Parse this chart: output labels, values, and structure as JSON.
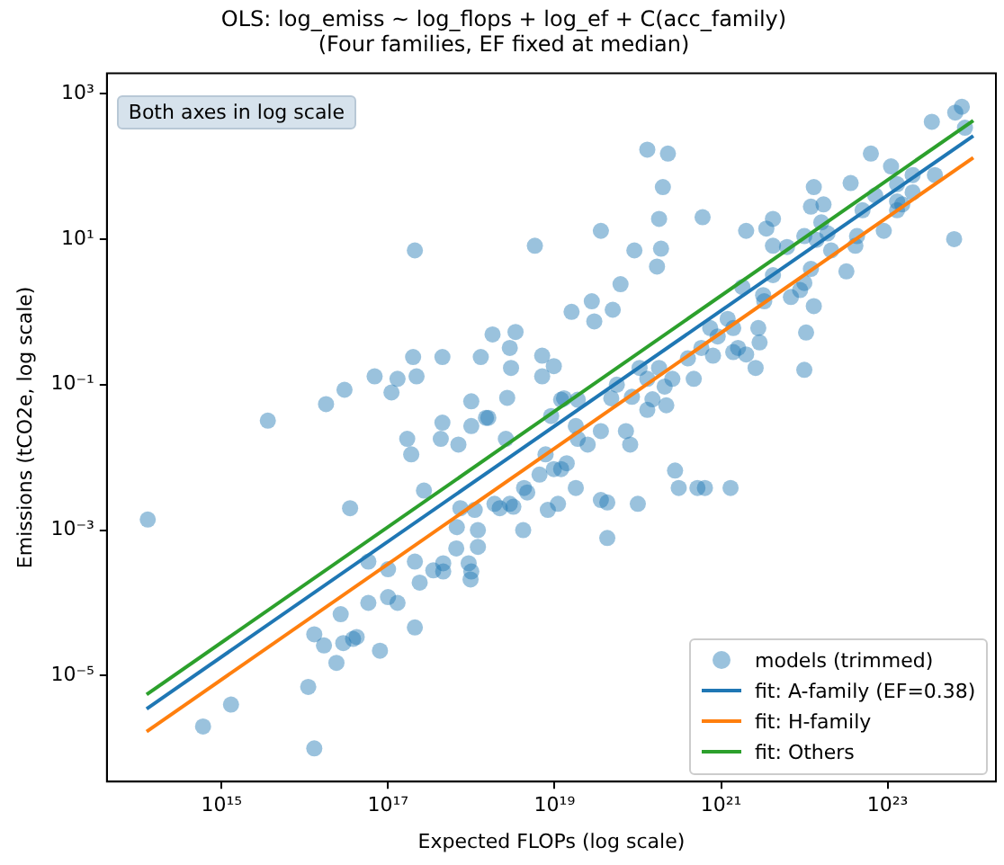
{
  "chart_data": {
    "type": "scatter",
    "title": "OLS: log_emiss ~ log_flops + log_ef + C(acc_family)",
    "subtitle": "(Four families, EF fixed at median)",
    "xlabel": "Expected FLOPs (log scale)",
    "ylabel": "Emissions (tCO2e, log scale)",
    "annotations": [
      "Both axes in log scale"
    ],
    "log": "xy",
    "grid": false,
    "legend": "bottom right",
    "xlim": [
      42000000000000.0,
      2e+24
    ],
    "ylim": [
      3.5e-07,
      1900
    ],
    "xticks": [
      {
        "value": 1000000000000000.0,
        "label": "10¹⁵"
      },
      {
        "value": 1e+17,
        "label": "10¹⁷"
      },
      {
        "value": 1e+19,
        "label": "10¹⁹"
      },
      {
        "value": 1e+21,
        "label": "10²¹"
      },
      {
        "value": 1e+23,
        "label": "10²³"
      }
    ],
    "yticks": [
      {
        "value": 1e-05,
        "label": "10⁻⁵"
      },
      {
        "value": 0.001,
        "label": "10⁻³"
      },
      {
        "value": 0.1,
        "label": "10⁻¹"
      },
      {
        "value": 10,
        "label": "10¹"
      },
      {
        "value": 1000,
        "label": "10³"
      }
    ],
    "series": [
      {
        "name": "models (trimmed)",
        "marker": "circle",
        "color": "#1f77b4",
        "x": [
          130000000000000.0,
          3600000000000000.0,
          600000000000000.0,
          1300000000000000.0,
          1.1e+16,
          1.3e+16,
          1.3e+16,
          1.7e+16,
          2.4e+16,
          2.7e+16,
          2.9e+16,
          3.8e+16,
          4.2e+16,
          3.5e+16,
          5.8e+16,
          5.8e+16,
          8e+16,
          1e+17,
          1e+17,
          1.3e+17,
          2.1e+17,
          2.1e+17,
          2.4e+17,
          2.7e+17,
          1.7e+17,
          1.9e+17,
          3.5e+17,
          4.6e+17,
          4.6e+17,
          4.3e+17,
          4.5e+17,
          7e+17,
          6.6e+17,
          6.7e+17,
          7.4e+17,
          9.3e+17,
          1e+18,
          9.8e+17,
          1.1e+18,
          1.2e+18,
          1.2e+18,
          1e+18,
          1.5e+18,
          1.6e+18,
          1.9e+18,
          2.2e+18,
          2.9e+18,
          3.2e+18,
          2.6e+18,
          4.2e+18,
          4.3e+18,
          4.7e+18,
          2.1e+17,
          1.8e+16,
          3e+16,
          6.9e+16,
          1.3e+17,
          1.1e+17,
          2.2e+17,
          2e+17,
          4.5e+17,
          1.3e+18,
          1.8e+18,
          3.4e+18,
          2.9e+18,
          3e+18,
          2.7e+18,
          1e+18,
          5.8e+18,
          1.3e+20,
          2.3e+20,
          2e+20,
          3.6e+19,
          9.1e+19,
          1.8e+20,
          1.9e+20,
          1.7e+20,
          6e+20,
          6.2e+19,
          2.8e+19,
          1.6e+19,
          3e+19,
          5e+19,
          7.1e+18,
          9.8e+18,
          7.1e+18,
          1.2e+19,
          1.3e+19,
          9.1e+18,
          1.9e+19,
          1.8e+19,
          2.5e+19,
          3.6e+19,
          4.8e+19,
          7.2e+19,
          5.6e+19,
          8.5e+19,
          1.3e+20,
          1.5e+20,
          1.05e+20,
          1.8e+20,
          1.3e+20,
          2.6e+20,
          2.1e+20,
          2.2e+20,
          4.7e+20,
          4e+20,
          5.8e+20,
          8e+20,
          9.1e+20,
          1.2e+21,
          1.4e+21,
          7.4e+20,
          1.6e+21,
          1.4e+21,
          2e+21,
          2.6e+21,
          2.9e+21,
          2.8e+21,
          1.8e+21,
          3.2e+21,
          3.3e+21,
          4.2e+21,
          2e+21,
          3.5e+21,
          4.2e+21,
          4.2e+21,
          6.2e+21,
          6.9e+21,
          8.9e+21,
          1e+22,
          1.05e+22,
          1e+22,
          1.3e+22,
          1.2e+22,
          1e+22,
          1.3e+22,
          1.2e+22,
          1.7e+22,
          1.6e+22,
          1.4e+22,
          1.9e+22,
          2.1e+22,
          3.2e+22,
          4.1e+22,
          4.3e+22,
          3.6e+22,
          5e+22,
          6.3e+22,
          9e+22,
          1.1e+23,
          1.3e+23,
          1.3e+23,
          2e+23,
          2e+23,
          3.4e+23,
          3.7e+23,
          6.5e+23,
          7.8e+23,
          8.5e+23,
          6.3e+23,
          1.3e+23,
          1.5e+23,
          7.1e+22,
          2.8e+20,
          3.1e+20,
          5.2e+20,
          6.4e+20,
          1.3e+21,
          1e+20,
          3.6e+19,
          4.3e+19,
          4.3e+19,
          1.8e+19,
          1.1e+19,
          8.3e+18,
          7.8e+18,
          6.6e+18,
          1.2e+19,
          1.4e+19,
          9.8e+18,
          1.9e+19,
          8.1e+19
        ],
        "values": [
          0.0014,
          0.032,
          2e-06,
          4e-06,
          7e-06,
          1e-06,
          3.7e-05,
          2.6e-05,
          1.5e-05,
          7e-05,
          2.8e-05,
          3.2e-05,
          3.4e-05,
          0.002,
          0.0001,
          0.00037,
          2.2e-05,
          0.00029,
          0.00012,
          0.0001,
          4.6e-05,
          0.00037,
          0.00019,
          0.0035,
          0.018,
          0.011,
          0.00028,
          0.00027,
          0.00035,
          0.018,
          0.03,
          0.015,
          0.00056,
          0.0011,
          0.002,
          0.00035,
          0.00027,
          0.00021,
          0.0019,
          0.001,
          0.00059,
          0.027,
          0.035,
          0.035,
          0.0023,
          0.002,
          0.0023,
          0.0021,
          0.018,
          0.001,
          0.0038,
          0.0033,
          7,
          0.054,
          0.085,
          0.13,
          0.12,
          0.078,
          0.13,
          0.24,
          0.24,
          0.24,
          0.49,
          0.53,
          0.32,
          0.17,
          0.066,
          0.059,
          8.1,
          170,
          150,
          52,
          13,
          7,
          19,
          7.4,
          4.2,
          20,
          2.4,
          1.4,
          1,
          0.74,
          1.07,
          0.25,
          0.18,
          0.13,
          0.062,
          0.065,
          0.037,
          0.062,
          0.027,
          0.015,
          0.023,
          0.065,
          0.023,
          0.1,
          0.068,
          0.045,
          0.063,
          0.17,
          0.17,
          0.12,
          0.12,
          0.094,
          0.052,
          0.12,
          0.23,
          0.32,
          0.25,
          0.46,
          0.8,
          0.6,
          0.6,
          0.32,
          0.28,
          0.26,
          0.17,
          0.38,
          0.6,
          2.2,
          1.7,
          1.4,
          3.2,
          13,
          14,
          19,
          8.1,
          7.8,
          1.6,
          2,
          2.5,
          0.52,
          0.16,
          1.2,
          3.9,
          11,
          52,
          28,
          30,
          17,
          9.8,
          12,
          7,
          3.6,
          8.1,
          11,
          59,
          25,
          150,
          13,
          100,
          57,
          33,
          76,
          44,
          410,
          76,
          550,
          660,
          340,
          10,
          25,
          30,
          40,
          0.0066,
          0.0038,
          0.0038,
          0.0038,
          0.0038,
          0.0023,
          0.0026,
          0.0024,
          0.00078,
          0.0038,
          0.0023,
          0.0019,
          0.011,
          0.0058,
          0.0069,
          0.0083,
          0.0069,
          0.018,
          0.015
        ]
      },
      {
        "type": "line",
        "marker": "none",
        "name": "fit: A-family (EF=0.38)",
        "color": "#1f77b4",
        "x": [
          126000000000000.0,
          1.07e+24
        ],
        "values": [
          3.5e-06,
          263
        ]
      },
      {
        "type": "line",
        "marker": "none",
        "name": "fit: H-family",
        "color": "#ff7f0e",
        "x": [
          126000000000000.0,
          1.07e+24
        ],
        "values": [
          1.7e-06,
          132
        ]
      },
      {
        "type": "line",
        "marker": "none",
        "name": "fit: Others",
        "color": "#2ca02c",
        "x": [
          126000000000000.0,
          1.07e+24
        ],
        "values": [
          5.5e-06,
          427
        ]
      }
    ]
  }
}
